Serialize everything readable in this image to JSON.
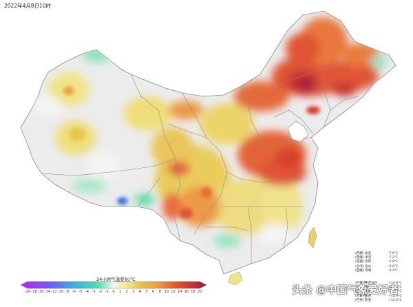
{
  "header": {
    "title": "2022年4月8日10时"
  },
  "legend": {
    "title": "24小时气温变化/℃",
    "ticks": [
      "-20",
      "-18",
      "-16",
      "-14",
      "-12",
      "-10",
      "-8",
      "-6",
      "-5",
      "-4",
      "-3",
      "-2",
      "-1",
      "0",
      "1",
      "2",
      "3",
      "4",
      "5",
      "6",
      "8",
      "10",
      "12",
      "14",
      "16",
      "18",
      "20"
    ],
    "colors": [
      "#b020e0",
      "#9a40f0",
      "#7a5cf0",
      "#5a70e8",
      "#4a86e0",
      "#3ca0dc",
      "#38b8d8",
      "#36c8c8",
      "#44d4b8",
      "#5cdcac",
      "#84e2b0",
      "#b4ecc8",
      "#dcf4e0",
      "#f4f4f4",
      "#f4f4f4",
      "#f2ec9a",
      "#eadc68",
      "#e8c64e",
      "#eab04a",
      "#ec9a44",
      "#ee8440",
      "#ea6a3a",
      "#e05434",
      "#d8402e",
      "#c83030",
      "#b02a3c",
      "#901848"
    ]
  },
  "stats": {
    "cold": [
      {
        "province": "(西藏)",
        "station": "加查",
        "value": "-7.6°C"
      },
      {
        "province": "(西藏)",
        "station": "泽当",
        "value": "-7.2°C"
      },
      {
        "province": "(西藏)",
        "station": "琼结",
        "value": "-6.8°C"
      },
      {
        "province": "(台湾)",
        "station": "恒山",
        "value": "-5.0°C"
      },
      {
        "province": "(西藏)",
        "station": "贡嘎",
        "value": "-4.4°C"
      }
    ],
    "warm": [
      {
        "province": "(内蒙古)",
        "station": "巴彦淖尔",
        "value": "+14.8°C"
      },
      {
        "province": "(内蒙古)",
        "station": "临河",
        "value": "+14.6°C"
      },
      {
        "province": "(吉林)",
        "station": "扶余",
        "value": "+14.5°C"
      },
      {
        "province": "(内蒙古)",
        "station": "五原",
        "value": "+13.9°C"
      },
      {
        "province": "(吉林)",
        "station": "乾安",
        "value": "+13.4°C"
      }
    ]
  },
  "watermark": {
    "text": "头条 @中国气象爱好者"
  },
  "map": {
    "regions": [
      {
        "name": "northeast-heat-core",
        "level": "+16"
      },
      {
        "name": "north-china-heat",
        "level": "+10"
      },
      {
        "name": "tibet-cold-spot",
        "level": "-8"
      },
      {
        "name": "southwest-cool-patches",
        "level": "-3"
      }
    ]
  }
}
